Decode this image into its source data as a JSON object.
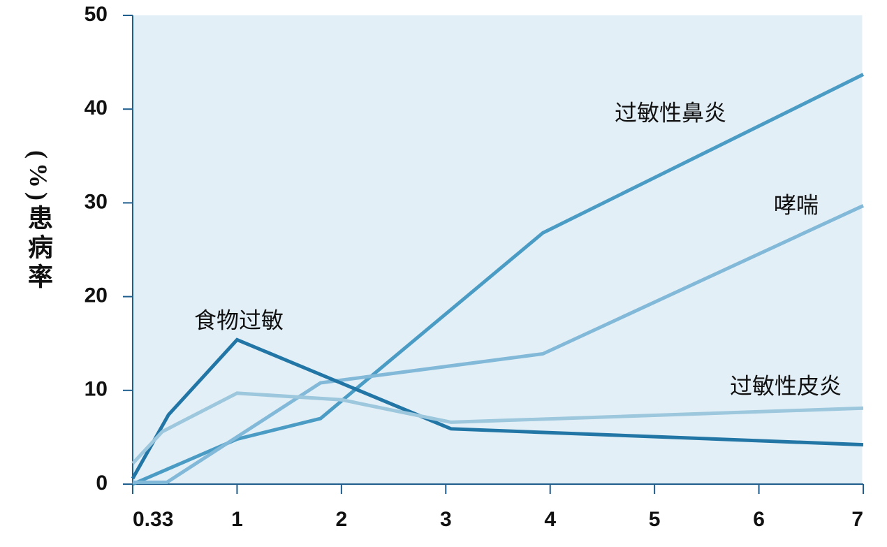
{
  "chart_data": {
    "type": "line",
    "y_label": "(%)患病率",
    "xlim": [
      0.33,
      7
    ],
    "xticks": [
      0.33,
      1,
      2,
      3,
      4,
      5,
      6,
      7
    ],
    "ylim": [
      0,
      50
    ],
    "yticks": [
      0,
      10,
      20,
      30,
      40,
      50
    ],
    "series": [
      {
        "name": "过敏性鼻炎",
        "color": "#4b9cc5",
        "x": [
          0.33,
          1,
          1.8,
          3.93,
          7
        ],
        "values": [
          0,
          4.8,
          7,
          26.8,
          43.7
        ]
      },
      {
        "name": "哮喘",
        "color": "#82b9d8",
        "x": [
          0.33,
          0.55,
          1.8,
          3.93,
          7
        ],
        "values": [
          0.2,
          0.2,
          10.8,
          13.9,
          29.7
        ]
      },
      {
        "name": "食物过敏",
        "color": "#2276a6",
        "x": [
          0.33,
          0.56,
          1,
          3.05,
          7
        ],
        "values": [
          0.6,
          7.4,
          15.4,
          5.9,
          4.2
        ]
      },
      {
        "name": "过敏性皮炎",
        "color": "#9cc7dd",
        "x": [
          0.33,
          0.52,
          1,
          2,
          3.05,
          7
        ],
        "values": [
          2.2,
          5.6,
          9.7,
          9.0,
          6.6,
          8.1
        ]
      }
    ]
  }
}
